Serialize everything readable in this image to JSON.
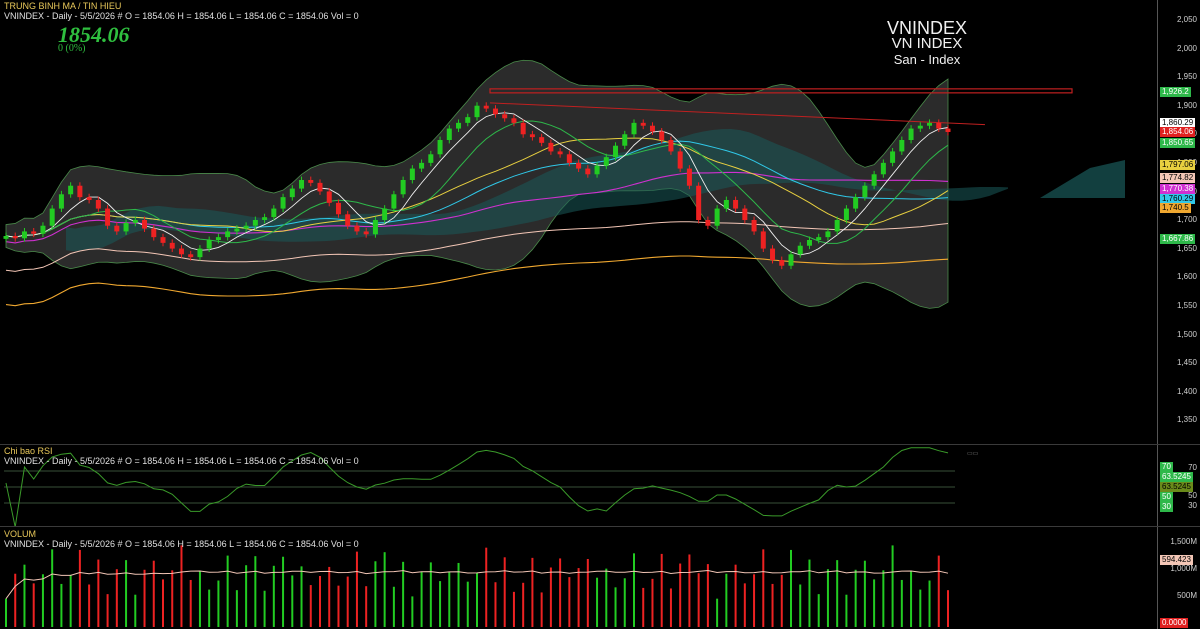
{
  "price_pane": {
    "title": "TRUNG BINH MA / TIN HIEU",
    "info": "VNINDEX - Daily - 5/5/2026  #  O = 1854.06  H = 1854.06  L = 1854.06  C = 1854.06  Vol = 0",
    "last_price": "1854.06",
    "change": "0  (0%)",
    "watermark": {
      "line1": "VNINDEX",
      "line2": "VN INDEX",
      "line3": "San - Index"
    },
    "axis_ticks": [
      "2,050",
      "2,000",
      "1,950",
      "1,900",
      "1,850",
      "1,800",
      "1,750",
      "1,700",
      "1,650",
      "1,600",
      "1,550",
      "1,500",
      "1,450",
      "1,400",
      "1,350"
    ],
    "tags": [
      {
        "text": "1,926.2",
        "bg": "#2eb84a",
        "fg": "#ffffff"
      },
      {
        "text": "1,860.29",
        "bg": "#ffffff",
        "fg": "#000000"
      },
      {
        "text": "1,854.06",
        "bg": "#e02020",
        "fg": "#ffffff"
      },
      {
        "text": "1,850.65",
        "bg": "#2eb84a",
        "fg": "#ffffff"
      },
      {
        "text": "1,797.06",
        "bg": "#e8d040",
        "fg": "#000000"
      },
      {
        "text": "1,774.82",
        "bg": "#f3c6b6",
        "fg": "#000000"
      },
      {
        "text": "1,770.38",
        "bg": "#d030d0",
        "fg": "#ffffff"
      },
      {
        "text": "1,760.29",
        "bg": "#30c8e8",
        "fg": "#000000"
      },
      {
        "text": "1,740.5",
        "bg": "#f0a830",
        "fg": "#000000"
      },
      {
        "text": "1,667.86",
        "bg": "#2eb84a",
        "fg": "#ffffff"
      }
    ]
  },
  "rsi_pane": {
    "title": "Chi bao RSI",
    "info": "VNINDEX - Daily - 5/5/2026  #  O = 1854.06  H = 1854.06  L = 1854.06  C = 1854.06  Vol = 0",
    "axis_ticks": [
      "70",
      "50",
      "30"
    ],
    "tags": [
      {
        "text": "70",
        "bg": "#2eb84a",
        "fg": "#ffffff"
      },
      {
        "text": "63.5245",
        "bg": "#2eb84a",
        "fg": "#ffffff"
      },
      {
        "text": "63.5245",
        "bg": "#6a8a1a",
        "fg": "#000000"
      },
      {
        "text": "50",
        "bg": "#2eb84a",
        "fg": "#ffffff"
      },
      {
        "text": "30",
        "bg": "#2eb84a",
        "fg": "#ffffff"
      }
    ]
  },
  "volume_pane": {
    "title": "VOLUM",
    "info": "VNINDEX - Daily - 5/5/2026  #  O = 1854.06  H = 1854.06  L = 1854.06  C = 1854.06  Vol = 0",
    "axis_ticks": [
      "1,500M",
      "1,000M",
      "500M"
    ],
    "tags": [
      {
        "text": "594.423",
        "bg": "#f3c6b6",
        "fg": "#000000"
      },
      {
        "text": "0.0000",
        "bg": "#e02020",
        "fg": "#ffffff"
      }
    ]
  },
  "colors": {
    "up": "#22cc22",
    "down": "#ee2222",
    "ma_green": "#2eb84a",
    "ma_yellow": "#e8d040",
    "ma_pink": "#f3c6b6",
    "ma_magenta": "#d030d0",
    "ma_cyan": "#30c8e8",
    "ma_orange": "#f0a830",
    "rsi_line": "#3a9a2a"
  }
}
